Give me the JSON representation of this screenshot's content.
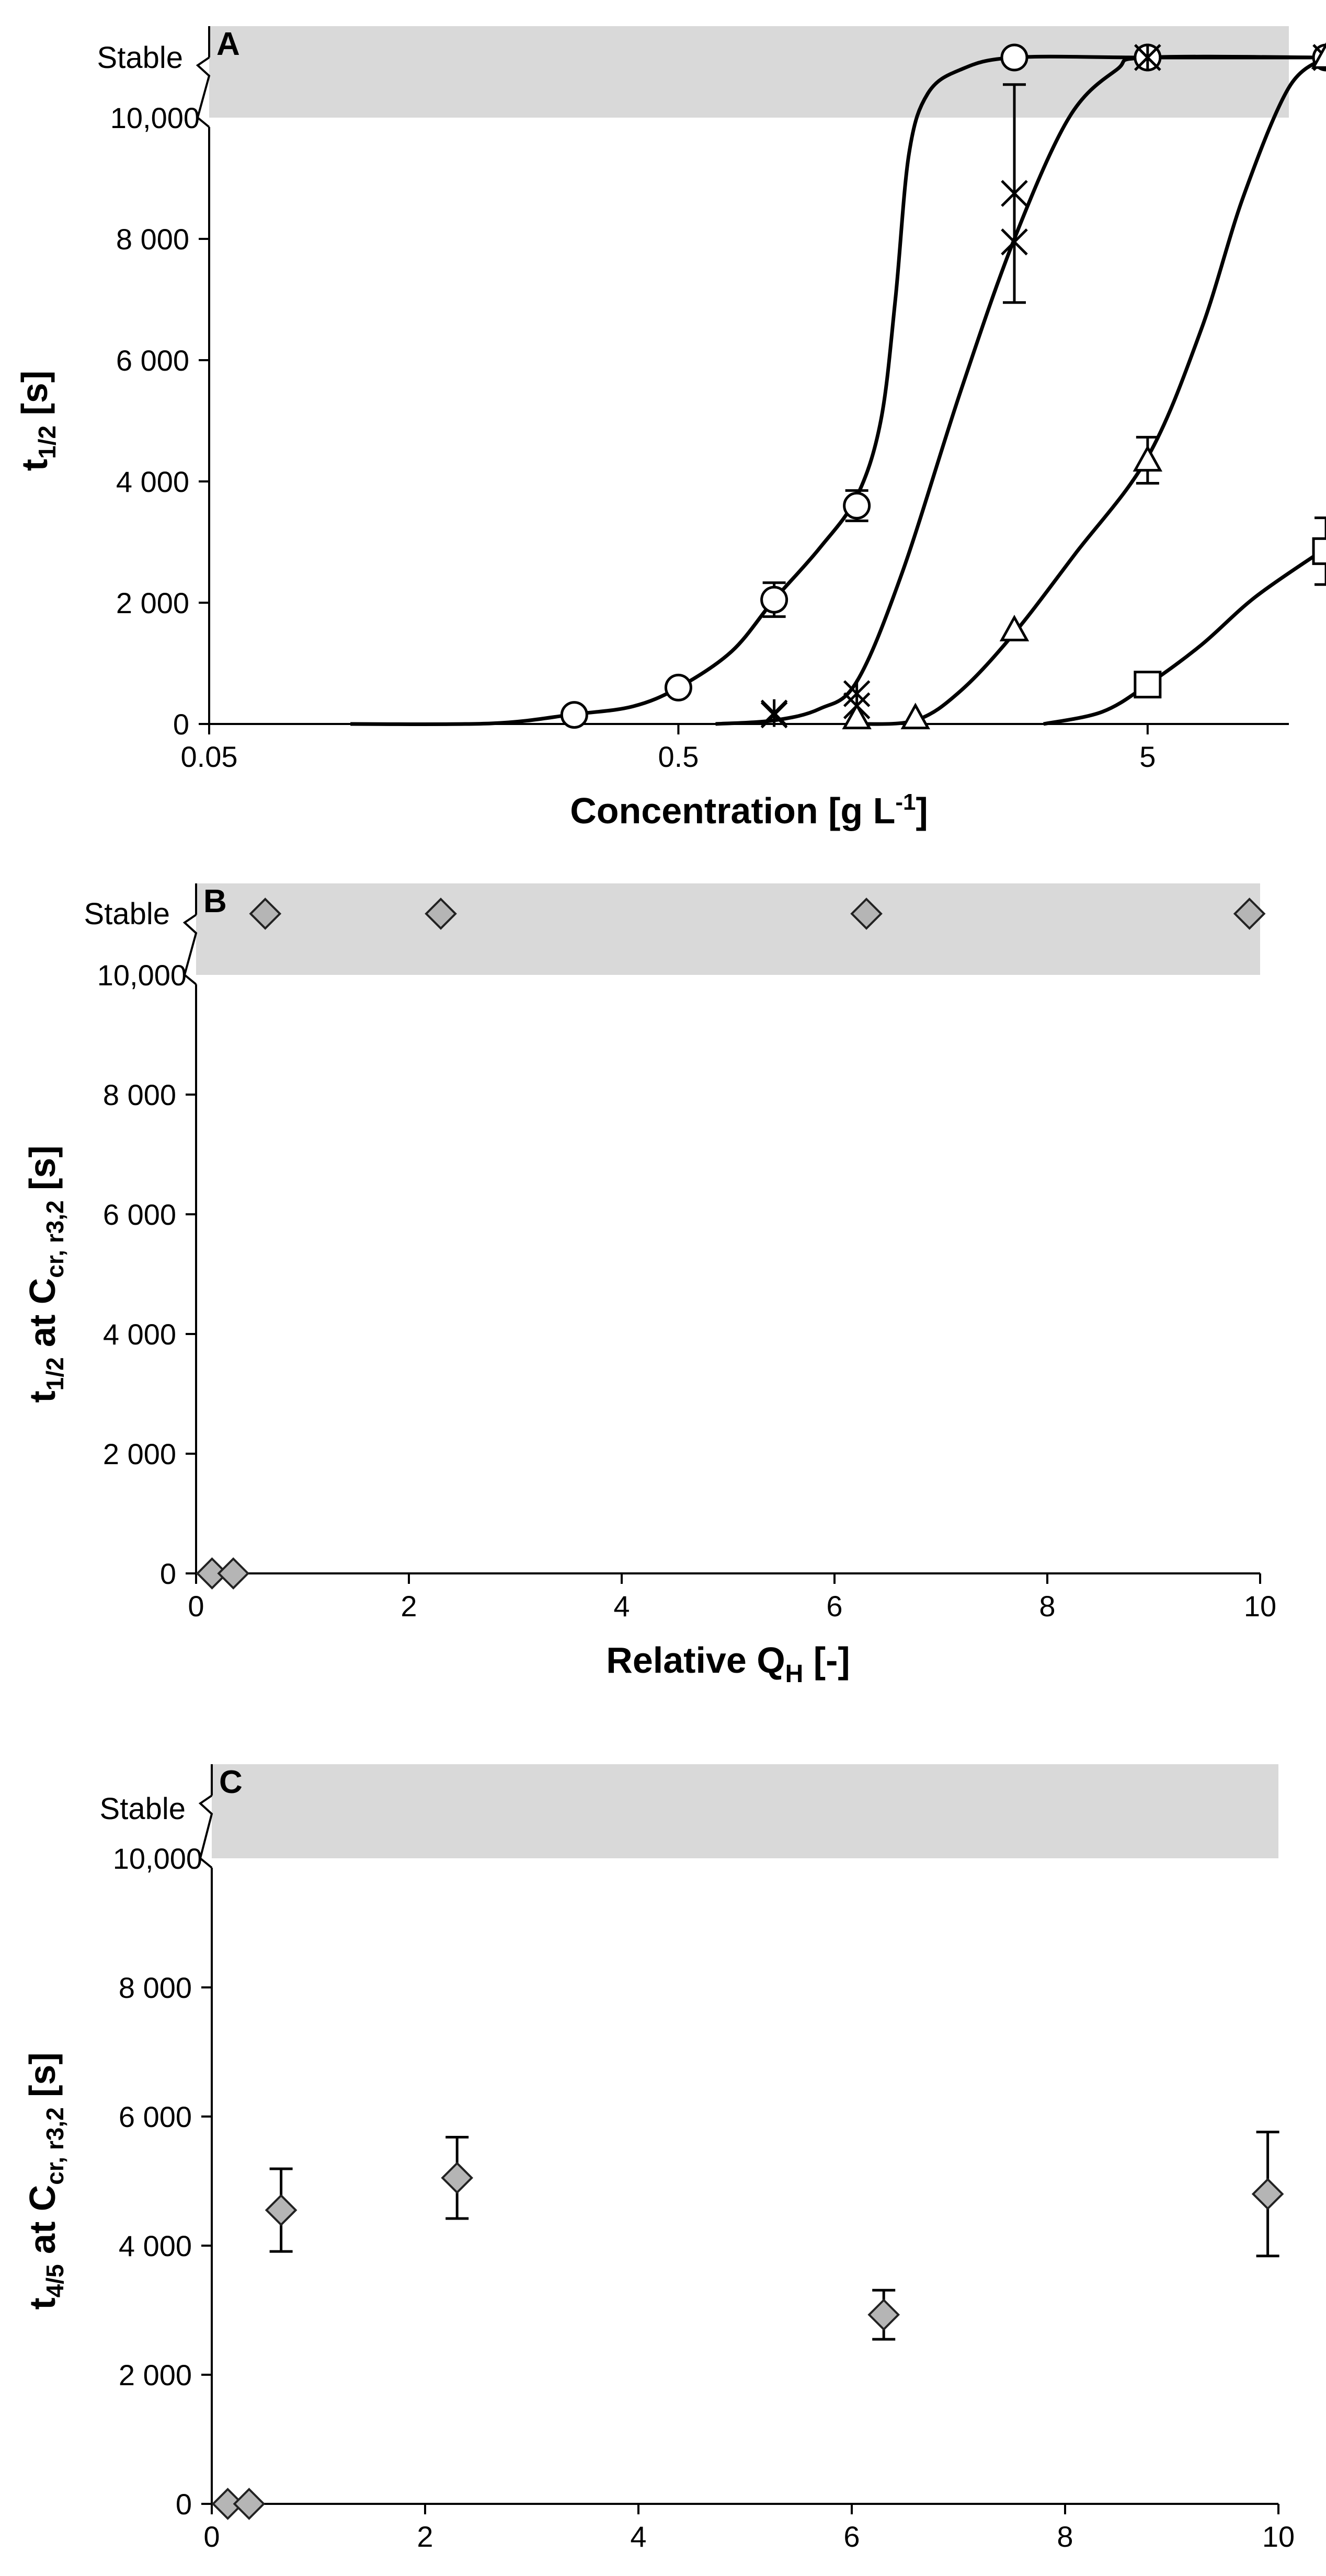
{
  "colors": {
    "stable_band": "#d9d9d9",
    "axis": "#000000",
    "diamond_fill": "#b5b5b5"
  },
  "chart_data": [
    {
      "type": "line",
      "panel_label": "A",
      "xlabel": "Concentration [g L",
      "xlabel_sup": "-1",
      "xlabel_end": "]",
      "ylabel_main": "t",
      "ylabel_sub": "1/2",
      "ylabel_end": " [s]",
      "xscale": "log",
      "xlim": [
        0.05,
        10
      ],
      "ylim": [
        0,
        10000
      ],
      "x_ticks": [
        0.05,
        0.5,
        5
      ],
      "x_tick_labels": [
        "0.05",
        "0.5",
        "5"
      ],
      "y_ticks": [
        0,
        2000,
        4000,
        6000,
        8000
      ],
      "y_tick_labels": [
        "0",
        "2 000",
        "4 000",
        "6 000",
        "8 000"
      ],
      "y_break_label": "10,000",
      "stable_label": "Stable",
      "stable_value": "stable",
      "series": [
        {
          "name": "circle",
          "marker": "circle",
          "points": [
            {
              "x": 0.3,
              "y": 150,
              "err": 0
            },
            {
              "x": 0.5,
              "y": 600,
              "err": 100
            },
            {
              "x": 0.8,
              "y": 2050,
              "err": 280
            },
            {
              "x": 1.2,
              "y": 3600,
              "err": 250
            },
            {
              "x": 2.6,
              "y": "stable",
              "err": 0
            },
            {
              "x": 5.0,
              "y": "stable",
              "err": 0
            },
            {
              "x": 12.0,
              "y": "stable",
              "err": 0
            }
          ],
          "curve": [
            [
              0.1,
              0
            ],
            [
              0.2,
              10
            ],
            [
              0.3,
              160
            ],
            [
              0.4,
              290
            ],
            [
              0.5,
              600
            ],
            [
              0.65,
              1200
            ],
            [
              0.8,
              2050
            ],
            [
              1.0,
              2900
            ],
            [
              1.2,
              3750
            ],
            [
              1.35,
              5000
            ],
            [
              1.45,
              7000
            ],
            [
              1.55,
              9400
            ],
            [
              1.7,
              10400
            ],
            [
              2.0,
              10800
            ],
            [
              2.6,
              11000
            ],
            [
              5.0,
              11000
            ],
            [
              12.0,
              11000
            ]
          ]
        },
        {
          "name": "x-cross",
          "marker": "x",
          "points": [
            {
              "x": 0.8,
              "y": 150,
              "err": 0
            },
            {
              "x": 1.2,
              "y": 300,
              "err": 0
            },
            {
              "x": 2.6,
              "y": 7950,
              "err": 0
            },
            {
              "x": 5.0,
              "y": "stable",
              "err": 0
            },
            {
              "x": 12.0,
              "y": "stable",
              "err": 0
            }
          ],
          "curve": [
            [
              0.6,
              0
            ],
            [
              0.8,
              60
            ],
            [
              1.0,
              250
            ],
            [
              1.2,
              700
            ],
            [
              1.5,
              2500
            ],
            [
              2.0,
              5500
            ],
            [
              2.6,
              8000
            ],
            [
              3.4,
              10000
            ],
            [
              4.3,
              10800
            ],
            [
              5.0,
              11000
            ],
            [
              12.0,
              11000
            ]
          ]
        },
        {
          "name": "asterisk",
          "marker": "asterisk",
          "points": [
            {
              "x": 0.8,
              "y": 180,
              "err": 0
            },
            {
              "x": 1.2,
              "y": 500,
              "err": 0
            },
            {
              "x": 2.6,
              "y": 8750,
              "err": 1800
            },
            {
              "x": 5.0,
              "y": "stable",
              "err": 0
            },
            {
              "x": 12.0,
              "y": "stable",
              "err": 0
            }
          ]
        },
        {
          "name": "triangle",
          "marker": "triangle",
          "points": [
            {
              "x": 1.2,
              "y": 100,
              "err": 0
            },
            {
              "x": 1.6,
              "y": 100,
              "err": 0
            },
            {
              "x": 2.6,
              "y": 1550,
              "err": 0
            },
            {
              "x": 5.0,
              "y": 4350,
              "err": 380
            },
            {
              "x": 12.0,
              "y": "stable",
              "err": 0
            }
          ],
          "curve": [
            [
              1.2,
              0
            ],
            [
              1.6,
              60
            ],
            [
              2.0,
              550
            ],
            [
              2.6,
              1500
            ],
            [
              3.5,
              2800
            ],
            [
              5.0,
              4400
            ],
            [
              6.5,
              6500
            ],
            [
              8.0,
              8700
            ],
            [
              10.0,
              10500
            ],
            [
              12.0,
              11000
            ]
          ]
        },
        {
          "name": "square",
          "marker": "square",
          "points": [
            {
              "x": 5.0,
              "y": 650,
              "err": 0
            },
            {
              "x": 12.0,
              "y": 2850,
              "err": 550
            }
          ],
          "curve": [
            [
              3.0,
              0
            ],
            [
              4.0,
              200
            ],
            [
              5.0,
              650
            ],
            [
              6.5,
              1300
            ],
            [
              8.5,
              2100
            ],
            [
              12.0,
              2900
            ]
          ]
        }
      ]
    },
    {
      "type": "scatter",
      "panel_label": "B",
      "xlabel": "Relative Q",
      "xlabel_sub": "H",
      "xlabel_end": " [-]",
      "ylabel_main": "t",
      "ylabel_sub": "1/2",
      "ylabel_mid": " at C",
      "ylabel_sub2": "cr, r3,2",
      "ylabel_end": " [s]",
      "xlim": [
        0,
        10
      ],
      "ylim": [
        0,
        10000
      ],
      "x_ticks": [
        0,
        2,
        4,
        6,
        8,
        10
      ],
      "x_tick_labels": [
        "0",
        "2",
        "4",
        "6",
        "8",
        "10"
      ],
      "y_ticks": [
        0,
        2000,
        4000,
        6000,
        8000
      ],
      "y_tick_labels": [
        "0",
        "2 000",
        "4 000",
        "6 000",
        "8 000"
      ],
      "y_break_label": "10,000",
      "stable_label": "Stable",
      "points": [
        {
          "x": 0.15,
          "y": 0,
          "err": 0
        },
        {
          "x": 0.35,
          "y": 0,
          "err": 0
        },
        {
          "x": 0.65,
          "y": "stable",
          "err": 0
        },
        {
          "x": 2.3,
          "y": "stable",
          "err": 0
        },
        {
          "x": 6.3,
          "y": "stable",
          "err": 0
        },
        {
          "x": 9.9,
          "y": "stable",
          "err": 0
        }
      ]
    },
    {
      "type": "scatter",
      "panel_label": "C",
      "xlabel": "Relative Q",
      "xlabel_sub": "H",
      "xlabel_end": " [-]",
      "ylabel_main": "t",
      "ylabel_sub": "4/5",
      "ylabel_mid": " at C",
      "ylabel_sub2": "cr, r3,2",
      "ylabel_end": " [s]",
      "xlim": [
        0,
        10
      ],
      "ylim": [
        0,
        10000
      ],
      "x_ticks": [
        0,
        2,
        4,
        6,
        8,
        10
      ],
      "x_tick_labels": [
        "0",
        "2",
        "4",
        "6",
        "8",
        "10"
      ],
      "y_ticks": [
        0,
        2000,
        4000,
        6000,
        8000
      ],
      "y_tick_labels": [
        "0",
        "2 000",
        "4 000",
        "6 000",
        "8 000"
      ],
      "y_break_label": "10,000",
      "stable_label": "Stable",
      "points": [
        {
          "x": 0.15,
          "y": 0,
          "err": 0
        },
        {
          "x": 0.35,
          "y": 0,
          "err": 0
        },
        {
          "x": 0.65,
          "y": 4550,
          "err": 640
        },
        {
          "x": 2.3,
          "y": 5050,
          "err": 630
        },
        {
          "x": 6.3,
          "y": 2930,
          "err": 380
        },
        {
          "x": 9.9,
          "y": 4800,
          "err": 960
        }
      ]
    }
  ]
}
